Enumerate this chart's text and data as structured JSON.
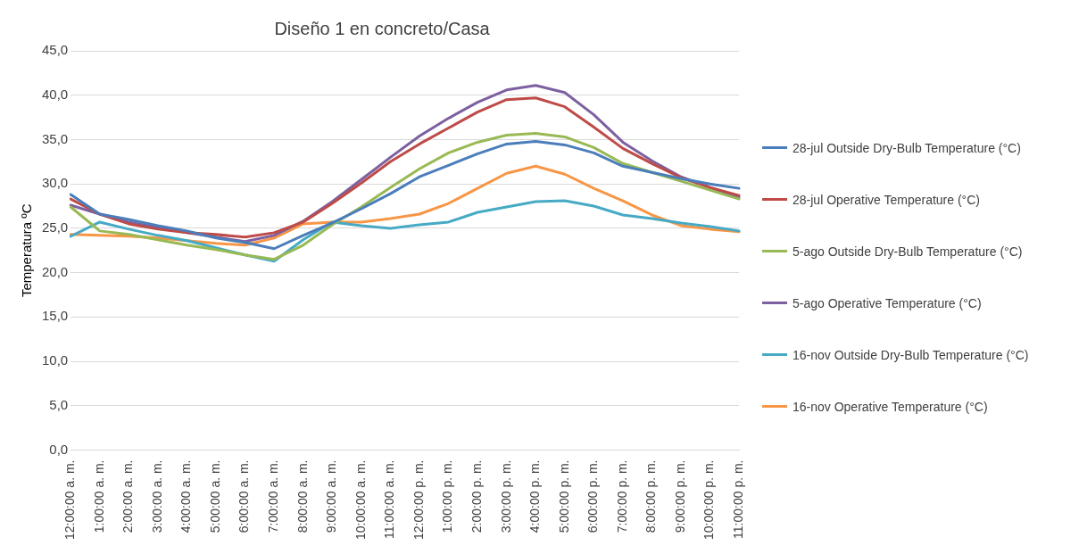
{
  "chart_data": {
    "type": "line",
    "title": "Diseño 1 en concreto/Casa",
    "ylabel": "Temperatura ºC",
    "categories": [
      "12:00:00 a. m.",
      "1:00:00 a. m.",
      "2:00:00 a. m.",
      "3:00:00 a. m.",
      "4:00:00 a. m.",
      "5:00:00 a. m.",
      "6:00:00 a. m.",
      "7:00:00 a. m.",
      "8:00:00 a. m.",
      "9:00:00 a. m.",
      "10:00:00 a. m.",
      "11:00:00 a. m.",
      "12:00:00 p. m.",
      "1:00:00 p. m.",
      "2:00:00 p. m.",
      "3:00:00 p. m.",
      "4:00:00 p. m.",
      "5:00:00 p. m.",
      "6:00:00 p. m.",
      "7:00:00 p. m.",
      "8:00:00 p. m.",
      "9:00:00 p. m.",
      "10:00:00 p. m.",
      "11:00:00 p. m."
    ],
    "series": [
      {
        "name": "28-jul Outside Dry-Bulb Temperature (°C)",
        "color": "#4a7ebb",
        "values": [
          28.8,
          26.6,
          26.0,
          25.3,
          24.7,
          23.9,
          23.4,
          22.7,
          24.2,
          25.6,
          27.2,
          28.9,
          30.8,
          32.1,
          33.4,
          34.5,
          34.8,
          34.4,
          33.5,
          32.0,
          31.3,
          30.6,
          30.0,
          29.5
        ]
      },
      {
        "name": "28-jul Operative Temperature (°C)",
        "color": "#be4b48",
        "values": [
          28.3,
          26.6,
          25.5,
          24.9,
          24.5,
          24.3,
          24.0,
          24.5,
          25.7,
          27.8,
          30.1,
          32.5,
          34.5,
          36.3,
          38.1,
          39.5,
          39.7,
          38.7,
          36.4,
          34.0,
          32.3,
          30.7,
          29.6,
          28.7
        ]
      },
      {
        "name": "5-ago Outside Dry-Bulb Temperature (°C)",
        "color": "#98b954",
        "values": [
          27.4,
          24.7,
          24.3,
          23.7,
          23.1,
          22.6,
          22.0,
          21.5,
          23.1,
          25.4,
          27.4,
          29.6,
          31.7,
          33.5,
          34.7,
          35.5,
          35.7,
          35.3,
          34.1,
          32.3,
          31.3,
          30.3,
          29.3,
          28.3
        ]
      },
      {
        "name": "5-ago Operative Temperature (°C)",
        "color": "#7d60a0",
        "values": [
          27.6,
          26.6,
          25.7,
          25.1,
          24.5,
          24.0,
          23.5,
          24.2,
          25.8,
          28.0,
          30.5,
          33.0,
          35.4,
          37.4,
          39.2,
          40.6,
          41.1,
          40.3,
          37.8,
          34.7,
          32.6,
          30.8,
          29.6,
          28.5
        ]
      },
      {
        "name": "16-nov Outside Dry-Bulb Temperature (°C)",
        "color": "#46aac5",
        "values": [
          24.1,
          25.7,
          24.9,
          24.2,
          23.6,
          22.8,
          22.0,
          21.3,
          23.7,
          25.7,
          25.3,
          25.0,
          25.4,
          25.7,
          26.8,
          27.4,
          28.0,
          28.1,
          27.5,
          26.5,
          26.1,
          25.6,
          25.2,
          24.7
        ]
      },
      {
        "name": "16-nov Operative Temperature (°C)",
        "color": "#f79646",
        "values": [
          24.3,
          24.2,
          24.1,
          23.9,
          23.6,
          23.3,
          23.1,
          23.9,
          25.5,
          25.7,
          25.7,
          26.1,
          26.6,
          27.8,
          29.5,
          31.2,
          32.0,
          31.1,
          29.5,
          28.1,
          26.5,
          25.3,
          24.9,
          24.6
        ]
      }
    ],
    "ylim": [
      0,
      45
    ],
    "yticks": [
      {
        "value": 0,
        "label": "0,0"
      },
      {
        "value": 5,
        "label": "5,0"
      },
      {
        "value": 10,
        "label": "10,0"
      },
      {
        "value": 15,
        "label": "15,0"
      },
      {
        "value": 20,
        "label": "20,0"
      },
      {
        "value": 25,
        "label": "25,0"
      },
      {
        "value": 30,
        "label": "30,0"
      },
      {
        "value": 35,
        "label": "35,0"
      },
      {
        "value": 40,
        "label": "40,0"
      },
      {
        "value": 45,
        "label": "45,0"
      }
    ],
    "grid": "y",
    "legend": "right",
    "marker": "none",
    "line_style": "solid"
  }
}
